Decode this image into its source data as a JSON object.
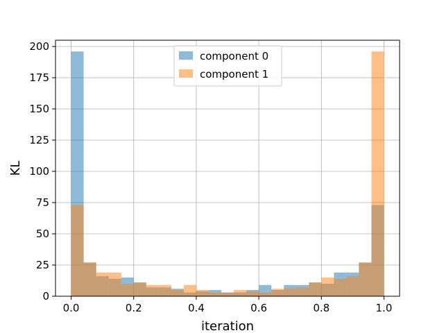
{
  "chart_data": {
    "type": "bar",
    "xlabel": "iteration",
    "ylabel": "KL",
    "xlim": [
      -0.05,
      1.05
    ],
    "ylim": [
      0,
      205
    ],
    "grid": true,
    "legend_position": "top-center",
    "x_ticks": [
      "0.0",
      "0.2",
      "0.4",
      "0.6",
      "0.8",
      "1.0"
    ],
    "y_ticks": [
      "0",
      "25",
      "50",
      "75",
      "100",
      "125",
      "150",
      "175",
      "200"
    ],
    "bin_edges": [
      0.0,
      0.04,
      0.08,
      0.12,
      0.16,
      0.2,
      0.24,
      0.28,
      0.32,
      0.36,
      0.4,
      0.44,
      0.48,
      0.52,
      0.56,
      0.6,
      0.64,
      0.68,
      0.72,
      0.76,
      0.8,
      0.84,
      0.88,
      0.92,
      0.96,
      1.0
    ],
    "series": [
      {
        "name": "component 0",
        "color": "#1f77b4",
        "alpha": 0.5,
        "values": [
          196,
          27,
          16,
          14,
          15,
          11,
          7,
          7,
          6,
          3,
          4,
          5,
          3,
          3,
          5,
          9,
          5,
          9,
          9,
          11,
          10,
          19,
          19,
          27,
          73
        ]
      },
      {
        "name": "component 1",
        "color": "#ff7f0e",
        "alpha": 0.5,
        "values": [
          73,
          27,
          19,
          19,
          10,
          11,
          9,
          9,
          5,
          9,
          5,
          3,
          3,
          5,
          4,
          3,
          6,
          6,
          7,
          11,
          15,
          14,
          16,
          27,
          196
        ]
      }
    ]
  }
}
